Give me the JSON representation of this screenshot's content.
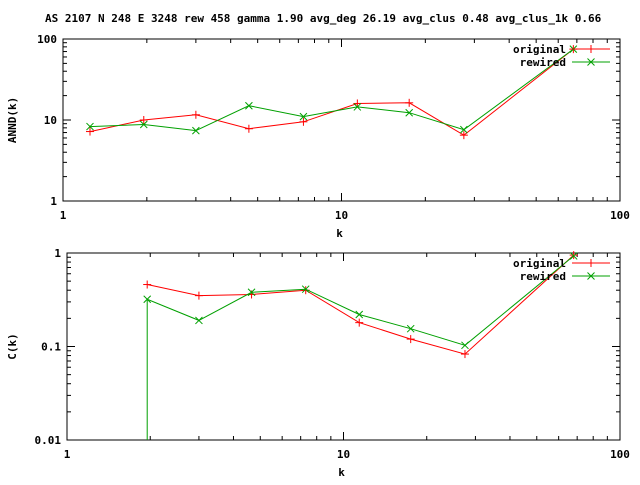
{
  "header": {
    "title": "AS 2107 N 248 E 3248 rew 458 gamma 1.90 avg_deg 26.19 avg_clus 0.48 avg_clus_1k 0.66"
  },
  "legend": {
    "series_a": "original",
    "series_b": "rewired",
    "placement": "top-right"
  },
  "colors": {
    "original": "#ff0000",
    "rewired": "#00a000",
    "axes": "#000000",
    "background": "#ffffff"
  },
  "chart_data": [
    {
      "type": "line",
      "title": "AS 2107 N 248 E 3248 rew 458 gamma 1.90 avg_deg 26.19 avg_clus 0.48 avg_clus_1k 0.66",
      "xlabel": "k",
      "ylabel": "ANND(k)",
      "xscale": "log",
      "yscale": "log",
      "xlim": [
        1,
        100
      ],
      "ylim": [
        1,
        100
      ],
      "xticks": [
        "1",
        "10",
        "100"
      ],
      "yticks": [
        "1",
        "10",
        "100"
      ],
      "grid": false,
      "legend": "top-right",
      "series": [
        {
          "name": "original",
          "marker": "plus",
          "x": [
            1.25,
            1.95,
            3.0,
            4.65,
            7.3,
            11.4,
            17.5,
            27.5,
            68
          ],
          "y": [
            7.2,
            10.0,
            11.6,
            7.8,
            9.5,
            16.0,
            16.3,
            6.5,
            75
          ]
        },
        {
          "name": "rewired",
          "marker": "cross",
          "x": [
            1.25,
            1.95,
            3.0,
            4.65,
            7.3,
            11.4,
            17.5,
            27.5,
            68
          ],
          "y": [
            8.3,
            8.8,
            7.4,
            15.0,
            11.0,
            14.5,
            12.3,
            7.6,
            75
          ]
        }
      ]
    },
    {
      "type": "line",
      "xlabel": "k",
      "ylabel": "C(k)",
      "xscale": "log",
      "yscale": "log",
      "xlim": [
        1,
        100
      ],
      "ylim": [
        0.01,
        1
      ],
      "xticks": [
        "1",
        "10",
        "100"
      ],
      "yticks": [
        "0.01",
        "0.1",
        "1"
      ],
      "grid": false,
      "legend": "top-right",
      "series": [
        {
          "name": "original",
          "marker": "plus",
          "x": [
            1.95,
            3.0,
            4.65,
            7.3,
            11.4,
            17.5,
            27.5,
            68
          ],
          "y": [
            0.46,
            0.35,
            0.36,
            0.4,
            0.18,
            0.12,
            0.083,
            0.95
          ]
        },
        {
          "name": "rewired",
          "marker": "cross",
          "x": [
            1.95,
            1.95,
            3.0,
            4.65,
            7.3,
            11.4,
            17.5,
            27.5,
            68
          ],
          "y": [
            0.01,
            0.32,
            0.19,
            0.38,
            0.41,
            0.22,
            0.155,
            0.103,
            0.93
          ]
        }
      ]
    }
  ]
}
